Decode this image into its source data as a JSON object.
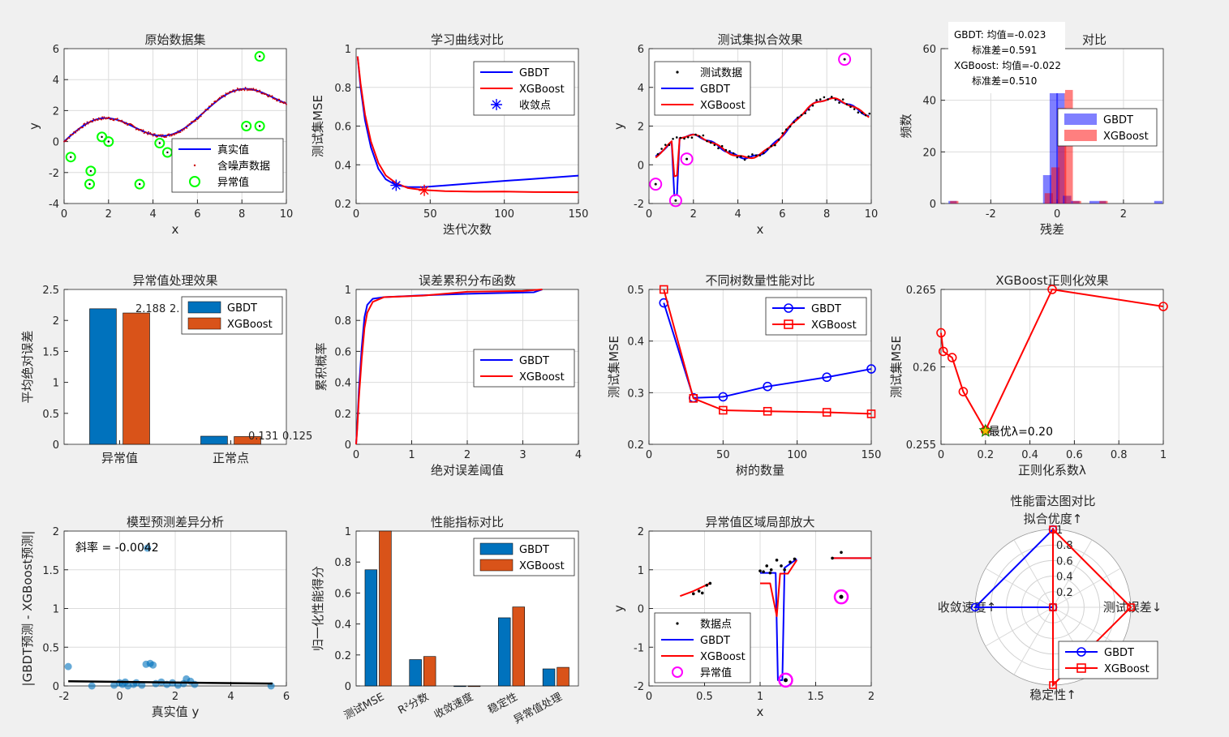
{
  "colors": {
    "gbdt": "#0000ff",
    "xgb": "#ff0000",
    "bar_gbdt": "#0072bd",
    "bar_xgb": "#d95319",
    "outlier": "#00ff00",
    "magenta": "#ff00ff",
    "grid": "#dcdcdc"
  },
  "chart_data": [
    {
      "id": "p1",
      "type": "scatter",
      "title": "原始数据集",
      "xlabel": "x",
      "ylabel": "y",
      "xlim": [
        0,
        10
      ],
      "ylim": [
        -4,
        6
      ],
      "xticks": [
        0,
        2,
        4,
        6,
        8,
        10
      ],
      "yticks": [
        -4,
        -2,
        0,
        2,
        4,
        6
      ],
      "legend": [
        "真实值",
        "含噪声数据",
        "异常值"
      ],
      "outliers": [
        [
          0.3,
          -1.0
        ],
        [
          1.2,
          -1.9
        ],
        [
          1.15,
          -2.75
        ],
        [
          1.7,
          0.3
        ],
        [
          2.0,
          0.0
        ],
        [
          3.4,
          -2.75
        ],
        [
          4.3,
          -0.1
        ],
        [
          4.65,
          -0.7
        ],
        [
          8.2,
          1.0
        ],
        [
          8.8,
          1.0
        ],
        [
          8.8,
          5.5
        ]
      ]
    },
    {
      "id": "p2",
      "type": "line",
      "title": "学习曲线对比",
      "xlabel": "迭代次数",
      "ylabel": "测试集MSE",
      "xlim": [
        0,
        150
      ],
      "ylim": [
        0.2,
        1
      ],
      "xticks": [
        0,
        50,
        100,
        150
      ],
      "yticks": [
        0.2,
        0.4,
        0.6,
        0.8,
        1
      ],
      "legend": [
        "GBDT",
        "XGBoost",
        "收敛点"
      ],
      "series": [
        {
          "name": "GBDT",
          "points": [
            [
              1,
              0.96
            ],
            [
              3,
              0.8
            ],
            [
              6,
              0.63
            ],
            [
              10,
              0.49
            ],
            [
              15,
              0.38
            ],
            [
              20,
              0.325
            ],
            [
              27,
              0.295
            ],
            [
              35,
              0.285
            ],
            [
              45,
              0.285
            ],
            [
              60,
              0.293
            ],
            [
              80,
              0.305
            ],
            [
              100,
              0.317
            ],
            [
              120,
              0.327
            ],
            [
              150,
              0.344
            ]
          ]
        },
        {
          "name": "XGBoost",
          "points": [
            [
              1,
              0.96
            ],
            [
              3,
              0.82
            ],
            [
              6,
              0.66
            ],
            [
              10,
              0.52
            ],
            [
              15,
              0.41
            ],
            [
              20,
              0.345
            ],
            [
              27,
              0.305
            ],
            [
              35,
              0.28
            ],
            [
              45,
              0.27
            ],
            [
              60,
              0.264
            ],
            [
              80,
              0.261
            ],
            [
              100,
              0.262
            ],
            [
              120,
              0.259
            ],
            [
              150,
              0.258
            ]
          ]
        }
      ],
      "convergence": [
        {
          "name": "GBDT",
          "x": 27,
          "y": 0.294
        },
        {
          "name": "XGBoost",
          "x": 46,
          "y": 0.268
        }
      ]
    },
    {
      "id": "p3",
      "type": "line",
      "title": "测试集拟合效果",
      "xlabel": "x",
      "ylabel": "y",
      "xlim": [
        0,
        10
      ],
      "ylim": [
        -2,
        6
      ],
      "xticks": [
        0,
        2,
        4,
        6,
        8,
        10
      ],
      "yticks": [
        -2,
        0,
        2,
        4,
        6
      ],
      "legend": [
        "测试数据",
        "GBDT",
        "XGBoost"
      ],
      "outliers": [
        [
          0.3,
          -1.0
        ],
        [
          1.2,
          -1.85
        ],
        [
          1.7,
          0.3
        ],
        [
          8.8,
          5.45
        ]
      ]
    },
    {
      "id": "p4",
      "type": "histogram",
      "title": "对比",
      "xlabel": "残差",
      "ylabel": "频数",
      "xlim": [
        -3.5,
        3.2
      ],
      "ylim": [
        0,
        60
      ],
      "xticks": [
        -2,
        0,
        2
      ],
      "yticks": [
        0,
        20,
        40,
        60
      ],
      "legend": [
        "GBDT",
        "XGBoost"
      ],
      "stats_box": [
        "GBDT: 均值=-0.023",
        "标准差=0.591",
        "XGBoost: 均值=-0.022",
        "标准差=0.510"
      ],
      "bin_centers": [
        -3.15,
        -0.8,
        -0.55,
        -0.3,
        -0.1,
        0.1,
        0.3,
        0.55,
        1.1,
        1.35,
        3.05
      ],
      "gbdt": [
        1,
        0,
        0,
        11,
        44,
        44,
        3,
        1,
        1,
        1,
        1
      ],
      "xgb": [
        1,
        0,
        0,
        4,
        14,
        37,
        44,
        1,
        0,
        1,
        0
      ]
    },
    {
      "id": "p5",
      "type": "bar",
      "title": "异常值处理效果",
      "xlabel": "",
      "ylabel": "平均绝对误差",
      "ylim": [
        0,
        2.5
      ],
      "yticks": [
        0,
        0.5,
        1,
        1.5,
        2,
        2.5
      ],
      "categories": [
        "异常值",
        "正常点"
      ],
      "series": [
        {
          "name": "GBDT",
          "values": [
            2.188,
            0.131
          ]
        },
        {
          "name": "XGBoost",
          "values": [
            2.12,
            0.125
          ]
        }
      ],
      "labels": [
        "2.188",
        "2.",
        "0.131",
        "0.125"
      ]
    },
    {
      "id": "p6",
      "type": "line",
      "title": "误差累积分布函数",
      "xlabel": "绝对误差阈值",
      "ylabel": "累积概率",
      "xlim": [
        0,
        4
      ],
      "ylim": [
        0,
        1
      ],
      "xticks": [
        0,
        1,
        2,
        3,
        4
      ],
      "yticks": [
        0,
        0.2,
        0.4,
        0.6,
        0.8,
        1
      ],
      "legend": [
        "GBDT",
        "XGBoost"
      ],
      "series": [
        {
          "name": "GBDT",
          "points": [
            [
              0,
              0
            ],
            [
              0.02,
              0.12
            ],
            [
              0.05,
              0.35
            ],
            [
              0.1,
              0.62
            ],
            [
              0.15,
              0.82
            ],
            [
              0.2,
              0.9
            ],
            [
              0.3,
              0.94
            ],
            [
              0.5,
              0.95
            ],
            [
              1.2,
              0.962
            ],
            [
              2.0,
              0.972
            ],
            [
              3.2,
              0.982
            ],
            [
              3.35,
              1.0
            ]
          ]
        },
        {
          "name": "XGBoost",
          "points": [
            [
              0,
              0
            ],
            [
              0.02,
              0.1
            ],
            [
              0.05,
              0.3
            ],
            [
              0.1,
              0.55
            ],
            [
              0.15,
              0.75
            ],
            [
              0.2,
              0.85
            ],
            [
              0.3,
              0.92
            ],
            [
              0.5,
              0.95
            ],
            [
              1.2,
              0.96
            ],
            [
              2.0,
              0.985
            ],
            [
              3.0,
              0.99
            ],
            [
              3.35,
              1.0
            ]
          ]
        }
      ]
    },
    {
      "id": "p7",
      "type": "line",
      "title": "不同树数量性能对比",
      "xlabel": "树的数量",
      "ylabel": "测试集MSE",
      "xlim": [
        0,
        150
      ],
      "ylim": [
        0.2,
        0.5
      ],
      "xticks": [
        0,
        50,
        100,
        150
      ],
      "yticks": [
        0.2,
        0.3,
        0.4,
        0.5
      ],
      "legend": [
        "GBDT",
        "XGBoost"
      ],
      "series": [
        {
          "name": "GBDT",
          "x": [
            10,
            30,
            50,
            80,
            120,
            150
          ],
          "values": [
            0.474,
            0.29,
            0.292,
            0.312,
            0.33,
            0.346
          ]
        },
        {
          "name": "XGBoost",
          "x": [
            10,
            30,
            50,
            80,
            120,
            150
          ],
          "values": [
            0.5,
            0.289,
            0.266,
            0.264,
            0.262,
            0.259
          ]
        }
      ]
    },
    {
      "id": "p8",
      "type": "line",
      "title": "XGBoost正则化效果",
      "xlabel": "正则化系数λ",
      "ylabel": "测试集MSE",
      "xlim": [
        0,
        1
      ],
      "ylim": [
        0.255,
        0.265
      ],
      "xticks": [
        0,
        0.2,
        0.4,
        0.6,
        0.8,
        1
      ],
      "yticks": [
        0.255,
        0.26,
        0.265
      ],
      "series": [
        {
          "name": "XGBoost",
          "x": [
            0,
            0.01,
            0.05,
            0.1,
            0.2,
            0.5,
            1.0
          ],
          "values": [
            0.2622,
            0.261,
            0.2606,
            0.2584,
            0.2559,
            0.265,
            0.2639
          ]
        }
      ],
      "annotation": "最优λ=0.20"
    },
    {
      "id": "p9",
      "type": "scatter",
      "title": "模型预测差异分析",
      "xlabel": "真实值 y",
      "ylabel": "|GBDT预测 - XGBoost预测|",
      "xlim": [
        -2,
        6
      ],
      "ylim": [
        0,
        2
      ],
      "xticks": [
        -2,
        0,
        2,
        4,
        6
      ],
      "yticks": [
        0,
        0.5,
        1,
        1.5,
        2
      ],
      "annotation": "斜率 = -0.0042",
      "fit": [
        [
          -1.85,
          0.06
        ],
        [
          5.5,
          0.03
        ]
      ],
      "points": [
        [
          -1.85,
          0.25
        ],
        [
          -1.0,
          0.0
        ],
        [
          -0.2,
          0.01
        ],
        [
          0.0,
          0.04
        ],
        [
          0.1,
          0.02
        ],
        [
          0.2,
          0.05
        ],
        [
          0.3,
          0.0
        ],
        [
          0.5,
          0.02
        ],
        [
          0.6,
          0.04
        ],
        [
          0.8,
          0.01
        ],
        [
          0.95,
          0.28
        ],
        [
          1.1,
          0.29
        ],
        [
          1.2,
          0.27
        ],
        [
          1.0,
          1.78
        ],
        [
          1.3,
          0.03
        ],
        [
          1.5,
          0.05
        ],
        [
          1.7,
          0.02
        ],
        [
          1.9,
          0.04
        ],
        [
          2.1,
          0.01
        ],
        [
          2.3,
          0.03
        ],
        [
          2.4,
          0.09
        ],
        [
          2.55,
          0.06
        ],
        [
          2.7,
          0.02
        ],
        [
          5.45,
          0.0
        ]
      ]
    },
    {
      "id": "p10",
      "type": "bar",
      "title": "性能指标对比",
      "xlabel": "",
      "ylabel": "归一化性能得分",
      "ylim": [
        0,
        1
      ],
      "yticks": [
        0,
        0.2,
        0.4,
        0.6,
        0.8,
        1
      ],
      "categories": [
        "测试MSE",
        "R²分数",
        "收敛速度",
        "稳定性",
        "异常值处理"
      ],
      "series": [
        {
          "name": "GBDT",
          "values": [
            0.75,
            0.17,
            0.0,
            0.44,
            0.11
          ]
        },
        {
          "name": "XGBoost",
          "values": [
            1.0,
            0.19,
            0.0,
            0.51,
            0.12
          ]
        }
      ]
    },
    {
      "id": "p11",
      "type": "line",
      "title": "异常值区域局部放大",
      "xlabel": "x",
      "ylabel": "y",
      "xlim": [
        0,
        2
      ],
      "ylim": [
        -2,
        2
      ],
      "xticks": [
        0,
        0.5,
        1,
        1.5,
        2
      ],
      "yticks": [
        -2,
        -1,
        0,
        1,
        2
      ],
      "legend": [
        "数据点",
        "GBDT",
        "XGBoost",
        "异常值"
      ],
      "points": [
        [
          0.4,
          0.38
        ],
        [
          0.45,
          0.45
        ],
        [
          0.48,
          0.4
        ],
        [
          0.52,
          0.6
        ],
        [
          0.55,
          0.65
        ],
        [
          1.0,
          0.97
        ],
        [
          1.03,
          0.95
        ],
        [
          1.06,
          1.1
        ],
        [
          1.09,
          0.92
        ],
        [
          1.1,
          1.0
        ],
        [
          1.15,
          1.25
        ],
        [
          1.19,
          1.1
        ],
        [
          1.22,
          1.0
        ],
        [
          1.27,
          1.2
        ],
        [
          1.31,
          1.28
        ],
        [
          1.65,
          1.3
        ],
        [
          1.73,
          1.45
        ]
      ],
      "outliers": [
        [
          1.23,
          -1.85
        ],
        [
          1.73,
          0.3
        ]
      ]
    },
    {
      "id": "p12",
      "type": "radar",
      "title": "性能雷达图对比",
      "axes": [
        "拟合优度↑",
        "测试误差↓",
        "稳定性↑",
        "收敛速度↑"
      ],
      "rings": [
        "0.2",
        "0.4",
        "0.6",
        "0.8",
        "1"
      ],
      "legend": [
        "GBDT",
        "XGBoost"
      ],
      "series": [
        {
          "name": "GBDT",
          "values": [
            1,
            0,
            0,
            1
          ]
        },
        {
          "name": "XGBoost",
          "values": [
            1,
            1,
            1,
            0
          ]
        }
      ]
    }
  ]
}
